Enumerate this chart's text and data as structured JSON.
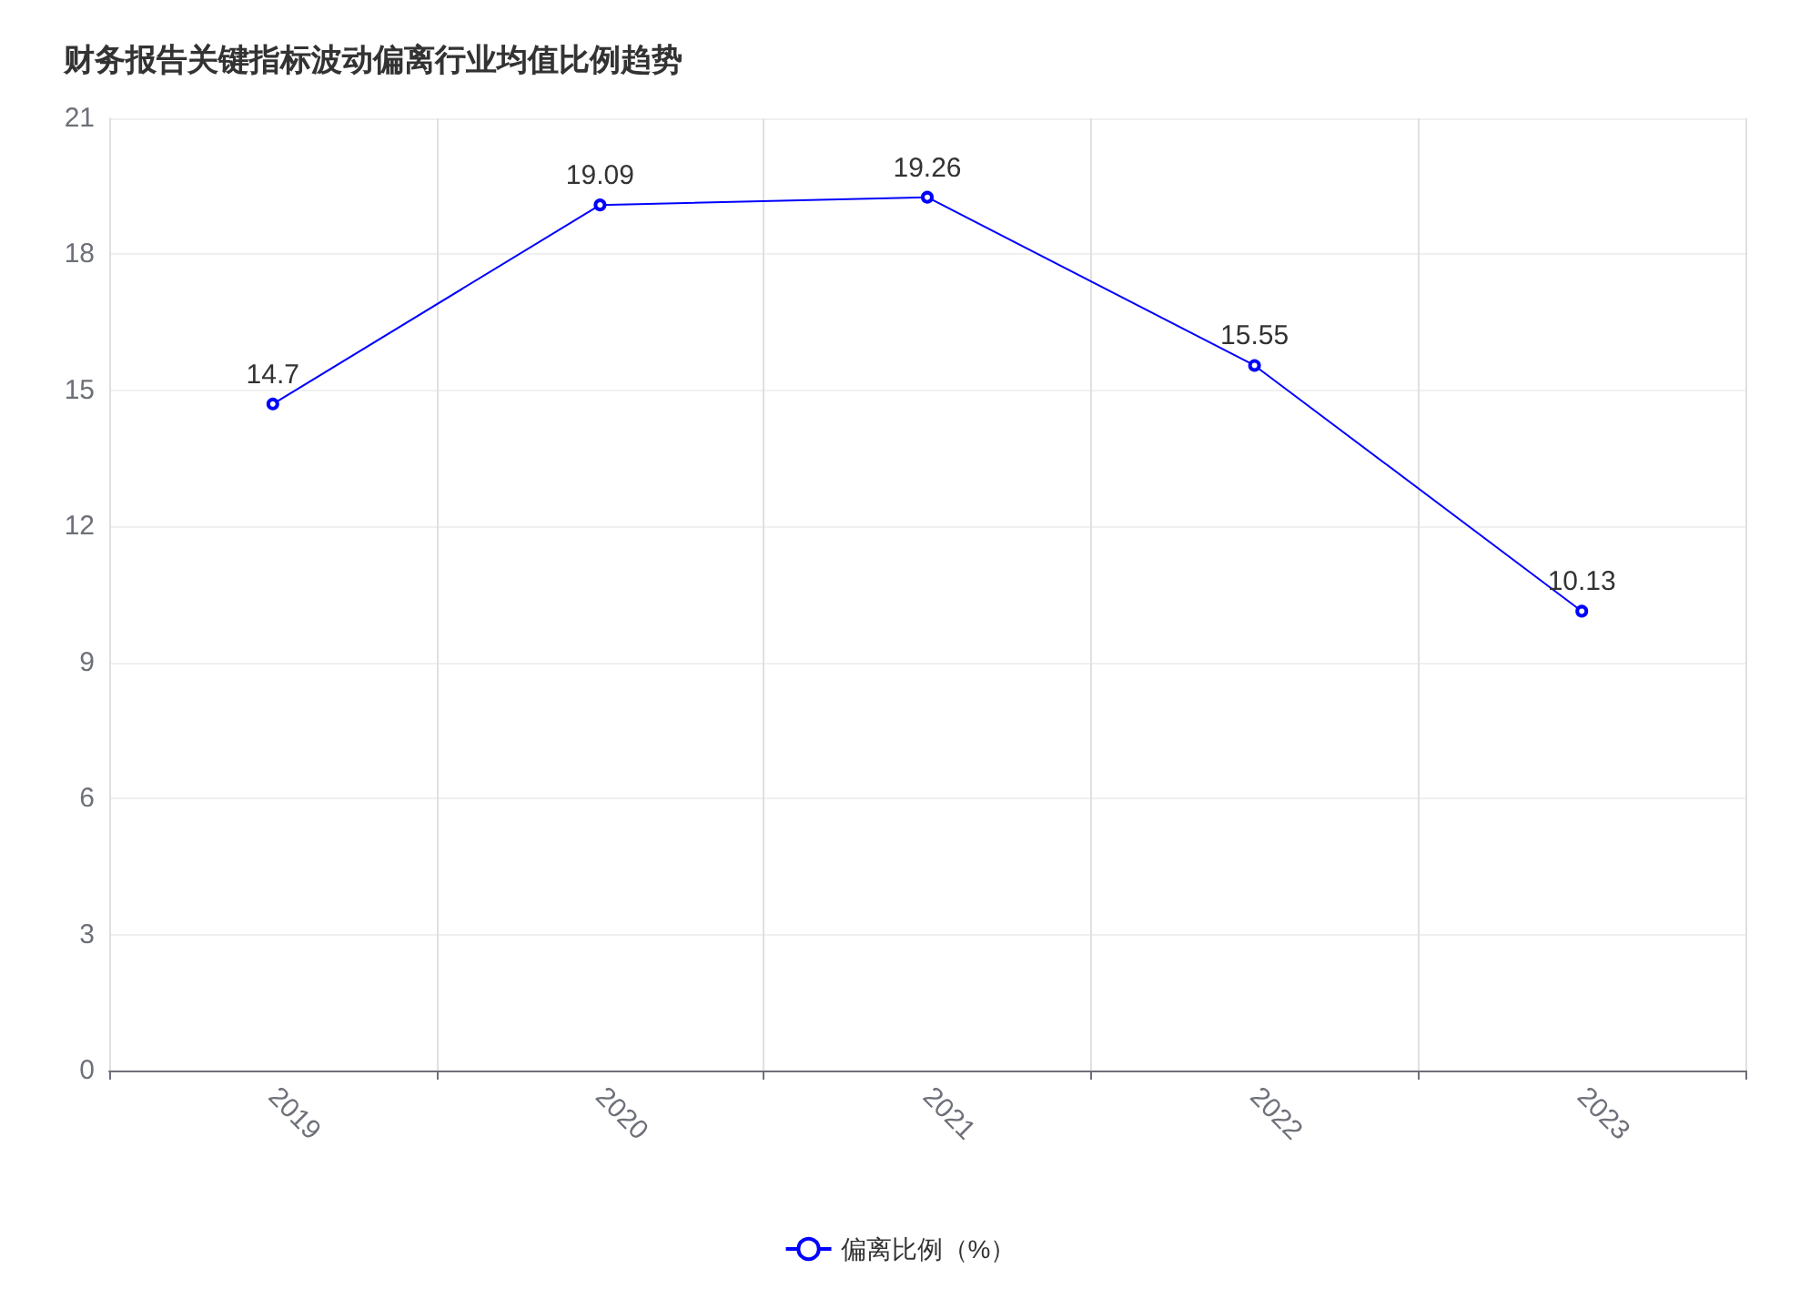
{
  "chart_data": {
    "type": "line",
    "title": "财务报告关键指标波动偏离行业均值比例趋势",
    "categories": [
      "2019",
      "2020",
      "2021",
      "2022",
      "2023"
    ],
    "series": [
      {
        "name": "偏离比例（%）",
        "color": "#0000ff",
        "values": [
          14.7,
          19.09,
          19.26,
          15.55,
          10.13
        ]
      }
    ],
    "ylim": [
      0,
      21
    ],
    "yticks": [
      0,
      3,
      6,
      9,
      12,
      15,
      18,
      21
    ],
    "grid": true,
    "legend": "bottom",
    "marker": "circle",
    "line_style": "solid",
    "data_labels": true
  }
}
